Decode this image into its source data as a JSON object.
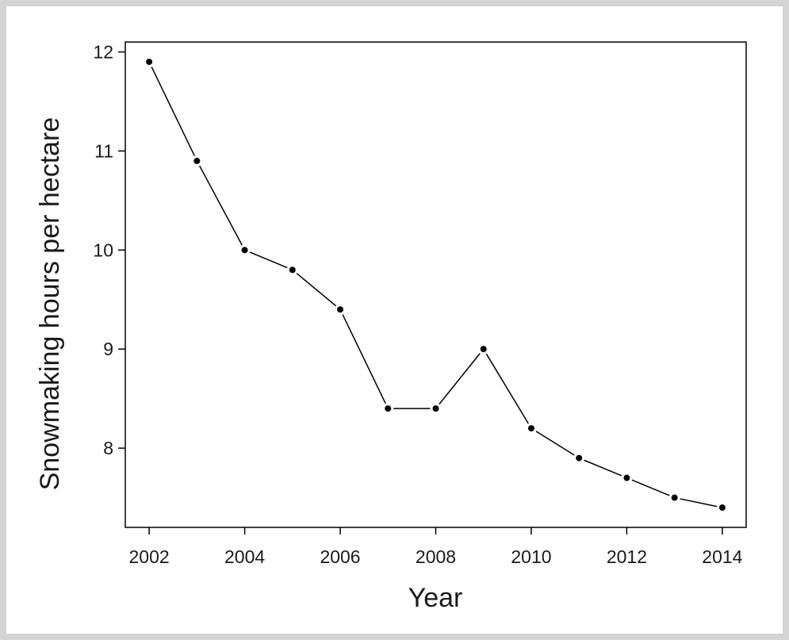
{
  "chart_data": {
    "type": "line",
    "title": "",
    "xlabel": "Year",
    "ylabel": "Snowmaking hours per hectare",
    "x": [
      2002,
      2003,
      2004,
      2005,
      2006,
      2007,
      2008,
      2009,
      2010,
      2011,
      2012,
      2013,
      2014
    ],
    "series": [
      {
        "values": [
          11.9,
          10.9,
          10.0,
          9.8,
          9.4,
          8.4,
          8.4,
          9.0,
          8.2,
          7.9,
          7.7,
          7.5,
          7.4
        ]
      }
    ],
    "xlim": [
      2001.5,
      2014.5
    ],
    "ylim": [
      7.2,
      12.1
    ],
    "xticks": [
      2002,
      2004,
      2006,
      2008,
      2010,
      2012,
      2014
    ],
    "yticks": [
      8,
      9,
      10,
      11,
      12
    ],
    "grid": false,
    "legend": "none",
    "colors": {
      "line": "#000000",
      "marker": "#000000",
      "axis": "#000000",
      "page_border": "#d4d4d4"
    }
  }
}
